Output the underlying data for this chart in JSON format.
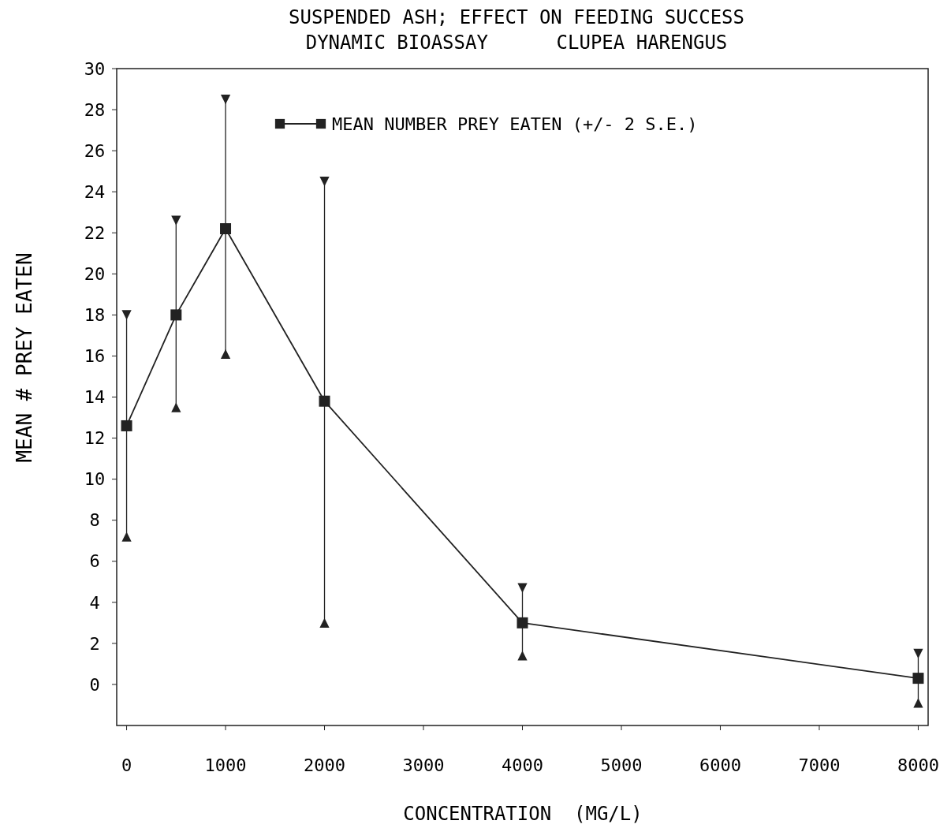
{
  "chart_data": {
    "type": "line",
    "title": "SUSPENDED ASH; EFFECT ON FEEDING SUCCESS",
    "subtitle": "DYNAMIC BIOASSAY      CLUPEA HARENGUS",
    "xlabel": "CONCENTRATION  (MG/L)",
    "ylabel": "MEAN # PREY EATEN",
    "x": [
      0,
      500,
      1000,
      2000,
      4000,
      8000
    ],
    "series": [
      {
        "name": "MEAN NUMBER PREY EATEN (+/- 2 S.E.)",
        "color": "#222222",
        "values": [
          12.6,
          18.0,
          22.2,
          13.8,
          3.0,
          0.3
        ],
        "errors": [
          [
            7.2,
            18.0
          ],
          [
            13.5,
            22.6
          ],
          [
            16.1,
            28.5
          ],
          [
            3.0,
            24.5
          ],
          [
            1.4,
            4.7
          ],
          [
            -0.9,
            1.5
          ]
        ]
      }
    ],
    "xlim": [
      -100,
      8100
    ],
    "xticks": [
      0,
      1000,
      2000,
      3000,
      4000,
      5000,
      6000,
      7000,
      8000
    ],
    "ylim": [
      -2,
      30
    ],
    "yticks": [
      0,
      2,
      4,
      6,
      8,
      10,
      12,
      14,
      16,
      18,
      20,
      22,
      24,
      26,
      28,
      30
    ],
    "marker": "square",
    "line_style": "solid",
    "legend": "top",
    "grid": false
  }
}
